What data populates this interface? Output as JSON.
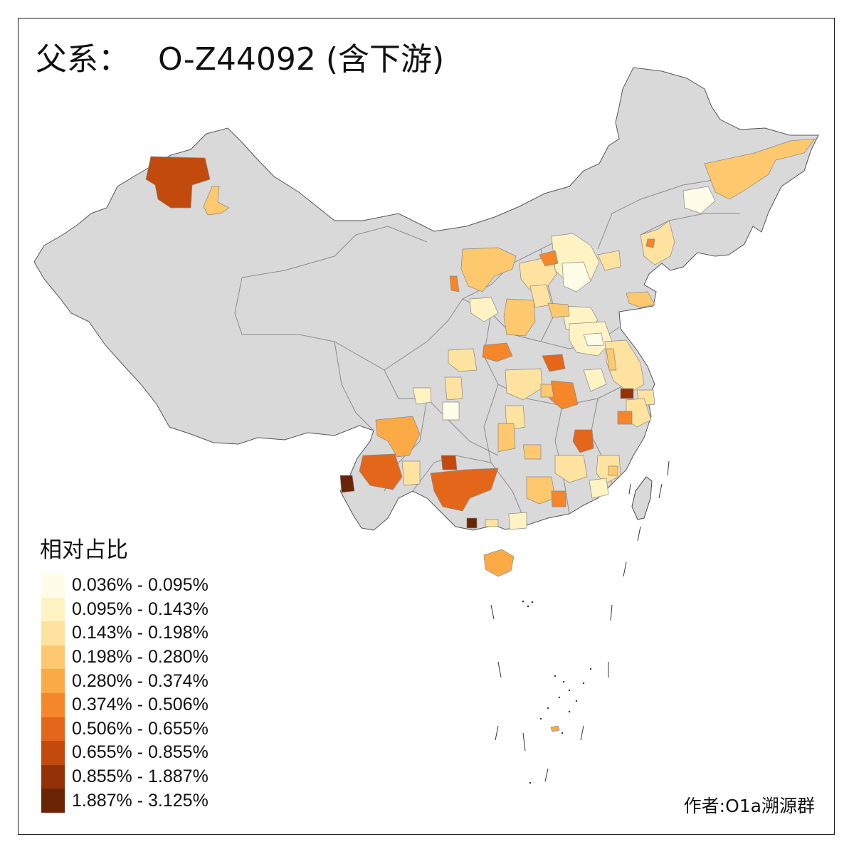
{
  "title": {
    "prefix": "父系：",
    "haplogroup": "O-Z44092 (含下游)"
  },
  "legend": {
    "title": "相对占比",
    "classes": [
      {
        "label": "0.036% - 0.095%",
        "color": "#fffde8"
      },
      {
        "label": "0.095% - 0.143%",
        "color": "#fff3c4"
      },
      {
        "label": "0.143% - 0.198%",
        "color": "#fee3a0"
      },
      {
        "label": "0.198% - 0.280%",
        "color": "#fdc86e"
      },
      {
        "label": "0.280% - 0.374%",
        "color": "#fcaa45"
      },
      {
        "label": "0.374% - 0.506%",
        "color": "#f5862a"
      },
      {
        "label": "0.506% - 0.655%",
        "color": "#e4661a"
      },
      {
        "label": "0.655% - 0.855%",
        "color": "#c24a0c"
      },
      {
        "label": "0.855% - 1.887%",
        "color": "#933206"
      },
      {
        "label": "1.887% - 3.125%",
        "color": "#6a2406"
      }
    ]
  },
  "author": "作者:O1a溯源群",
  "colors": {
    "land": "#d9d9d9",
    "border": "#8c8c8c",
    "outline": "#333333"
  }
}
